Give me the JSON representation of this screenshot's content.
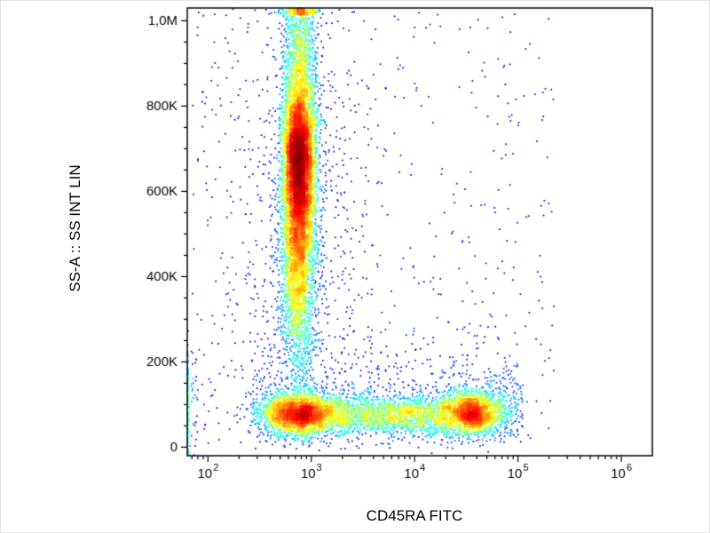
{
  "figure": {
    "background": "#ffffff",
    "frame_color": "#000000"
  },
  "chart_data": {
    "type": "scatter",
    "subtype": "flow-cytometry-pseudocolor-density",
    "title": "",
    "xlabel": "CD45RA FITC",
    "ylabel": "SS-A :: SS INT LIN",
    "x_scale": "log",
    "x_log_range": [
      1.8,
      6.3
    ],
    "y_scale": "linear",
    "y_range": [
      -20000,
      1030000
    ],
    "x_tick_base": "10",
    "x_ticks": [
      {
        "log": 2,
        "exp": "2"
      },
      {
        "log": 3,
        "exp": "3"
      },
      {
        "log": 4,
        "exp": "4"
      },
      {
        "log": 5,
        "exp": "5"
      },
      {
        "log": 6,
        "exp": "6"
      }
    ],
    "y_ticks": [
      {
        "value": 0,
        "label": "0"
      },
      {
        "value": 200000,
        "label": "200K"
      },
      {
        "value": 400000,
        "label": "400K"
      },
      {
        "value": 600000,
        "label": "600K"
      },
      {
        "value": 800000,
        "label": "800K"
      },
      {
        "value": 1000000,
        "label": "1,0M"
      }
    ],
    "y_minor_step": 50000,
    "grid": false,
    "legend": "none",
    "colormap": "jet",
    "point_size": 1.7,
    "seed": 1337,
    "populations": [
      {
        "name": "granulocytes-core",
        "count": 5600,
        "x_log_mean": 2.88,
        "x_log_sd": 0.075,
        "y_mean": 660000,
        "y_sd": 95000
      },
      {
        "name": "granulocytes-lower",
        "count": 2600,
        "x_log_mean": 2.87,
        "x_log_sd": 0.085,
        "y_mean": 420000,
        "y_sd": 120000
      },
      {
        "name": "granulocytes-upper",
        "count": 2200,
        "x_log_mean": 2.89,
        "x_log_sd": 0.09,
        "y_mean": 850000,
        "y_sd": 180000
      },
      {
        "name": "cd45ra-neg-lymphoid",
        "count": 2400,
        "x_log_mean": 2.85,
        "x_log_sd": 0.18,
        "y_mean": 78000,
        "y_sd": 25000
      },
      {
        "name": "cd45ra-intermediate-band",
        "count": 2200,
        "x_log_uniform": [
          2.9,
          4.35
        ],
        "y_mean": 76000,
        "y_sd": 24000
      },
      {
        "name": "cd45ra-pos-lymphocytes",
        "count": 2000,
        "x_log_mean": 4.55,
        "x_log_sd": 0.14,
        "y_mean": 80000,
        "y_sd": 26000
      },
      {
        "name": "cd45ra-pos-tail",
        "count": 200,
        "x_log_uniform": [
          4.7,
          5.05
        ],
        "y_mean": 95000,
        "y_sd": 45000
      },
      {
        "name": "left-edge-clipped",
        "count": 260,
        "x_log_mean": 1.72,
        "x_log_sd": 0.1,
        "y_mean": 90000,
        "y_sd": 70000
      },
      {
        "name": "debris-halo-vertical",
        "count": 700,
        "x_log_mean": 2.9,
        "x_log_sd": 0.35,
        "y_mean": 550000,
        "y_sd": 280000
      },
      {
        "name": "debris-halo-horizontal",
        "count": 500,
        "x_log_uniform": [
          2.4,
          5.0
        ],
        "y_mean": 130000,
        "y_sd": 70000
      },
      {
        "name": "sparse-noise",
        "count": 500,
        "x_log_uniform": [
          1.85,
          5.35
        ],
        "y_uniform": [
          0,
          1020000
        ]
      }
    ]
  }
}
